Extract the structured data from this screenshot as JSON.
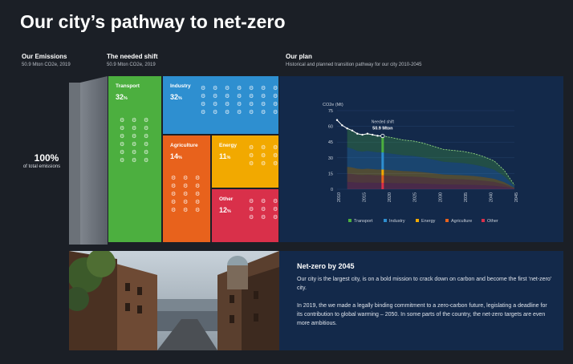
{
  "header": {
    "title": "Our city’s pathway to net-zero"
  },
  "emissions": {
    "heading": "Our Emissions",
    "sub": "50.9 Mton CO2e, 2019",
    "percent": "100%",
    "percent_sub": "of total emissions"
  },
  "shift": {
    "heading": "The needed shift",
    "sub": "50.9 Mton CO2e, 2019"
  },
  "plan": {
    "heading": "Our plan",
    "sub": "Historical and planned transition pathway for our city 2010-2045"
  },
  "sectors": [
    {
      "name": "Transport",
      "pct": "32",
      "unit": "%",
      "color": "#4caf3f"
    },
    {
      "name": "Industry",
      "pct": "32",
      "unit": "%",
      "color": "#2e8fd0"
    },
    {
      "name": "Agriculture",
      "pct": "14",
      "unit": "%",
      "color": "#e8621c"
    },
    {
      "name": "Energy",
      "pct": "11",
      "unit": "%",
      "color": "#f2a900"
    },
    {
      "name": "Other",
      "pct": "12",
      "unit": "%",
      "color": "#d9304a"
    }
  ],
  "icon_glyph": "⚙",
  "chart_data": {
    "type": "area",
    "ylabel": "CO2e (Mt)",
    "ylim": [
      0,
      75
    ],
    "yticks": [
      "0",
      "15",
      "30",
      "45",
      "60",
      "75"
    ],
    "xticks": [
      "2010",
      "2015",
      "2020",
      "2025",
      "2030",
      "2035",
      "2040",
      "2045"
    ],
    "annotation": {
      "label": "Needed shift",
      "value": "50.9 Mton",
      "year": 2019
    },
    "historical_total": {
      "x": [
        2010,
        2011,
        2012,
        2013,
        2014,
        2015,
        2016,
        2017,
        2018,
        2019
      ],
      "y": [
        66,
        61,
        58,
        56,
        53,
        52,
        53,
        52,
        51,
        50.9
      ]
    },
    "planned_total": {
      "x": [
        2019,
        2021,
        2023,
        2025,
        2027,
        2029,
        2031,
        2033,
        2035,
        2037,
        2039,
        2041,
        2043,
        2045
      ],
      "y": [
        50.9,
        49,
        47,
        46,
        44,
        41,
        38,
        37,
        36,
        34,
        31,
        27,
        18,
        4
      ]
    },
    "series": [
      {
        "name": "Transport",
        "color": "#4caf3f"
      },
      {
        "name": "Industry",
        "color": "#2e8fd0"
      },
      {
        "name": "Energy",
        "color": "#f2a900"
      },
      {
        "name": "Agriculture",
        "color": "#e8621c"
      },
      {
        "name": "Other",
        "color": "#d9304a"
      }
    ]
  },
  "story": {
    "heading": "Net-zero by 2045",
    "p1": "Our city is the largest city, is on a bold mission to crack down on carbon and become the first ‘net-zero’ city.",
    "p2": "In 2019, the we made a legally binding commitment to a zero-carbon future, legislating a deadline for its contribution to global warming – 2050. In some parts of the country, the net-zero targets are even more ambitious."
  }
}
